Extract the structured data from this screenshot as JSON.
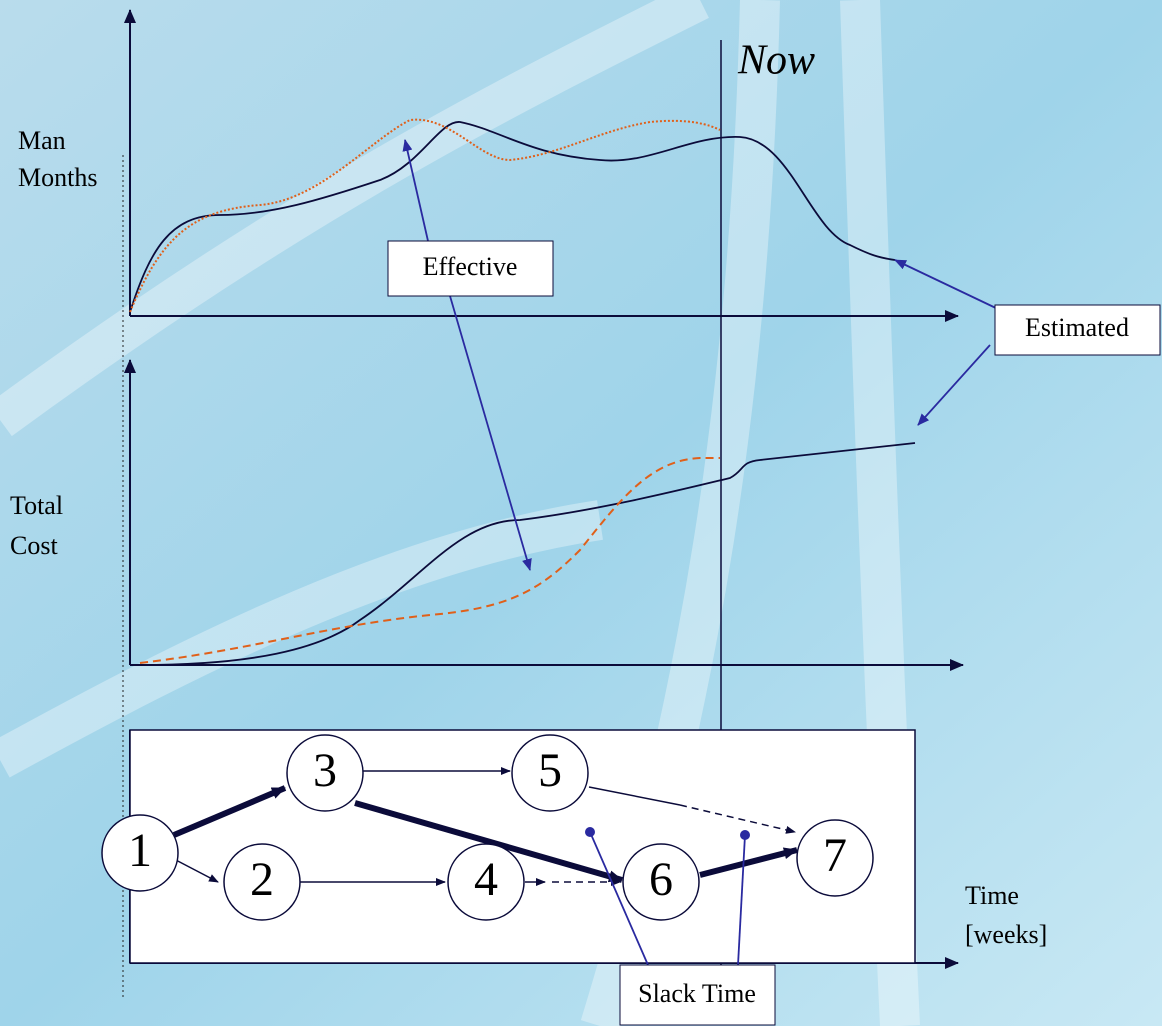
{
  "now": "Now",
  "man_months": [
    "Man",
    "Months"
  ],
  "total_cost": [
    "Total",
    "Cost"
  ],
  "time": [
    "Time",
    "[weeks]"
  ],
  "effective": "Effective",
  "estimated": "Estimated",
  "slack_time": "Slack Time",
  "nodes": [
    {
      "label": "1"
    },
    {
      "label": "2"
    },
    {
      "label": "3"
    },
    {
      "label": "4"
    },
    {
      "label": "5"
    },
    {
      "label": "6"
    },
    {
      "label": "7"
    }
  ]
}
